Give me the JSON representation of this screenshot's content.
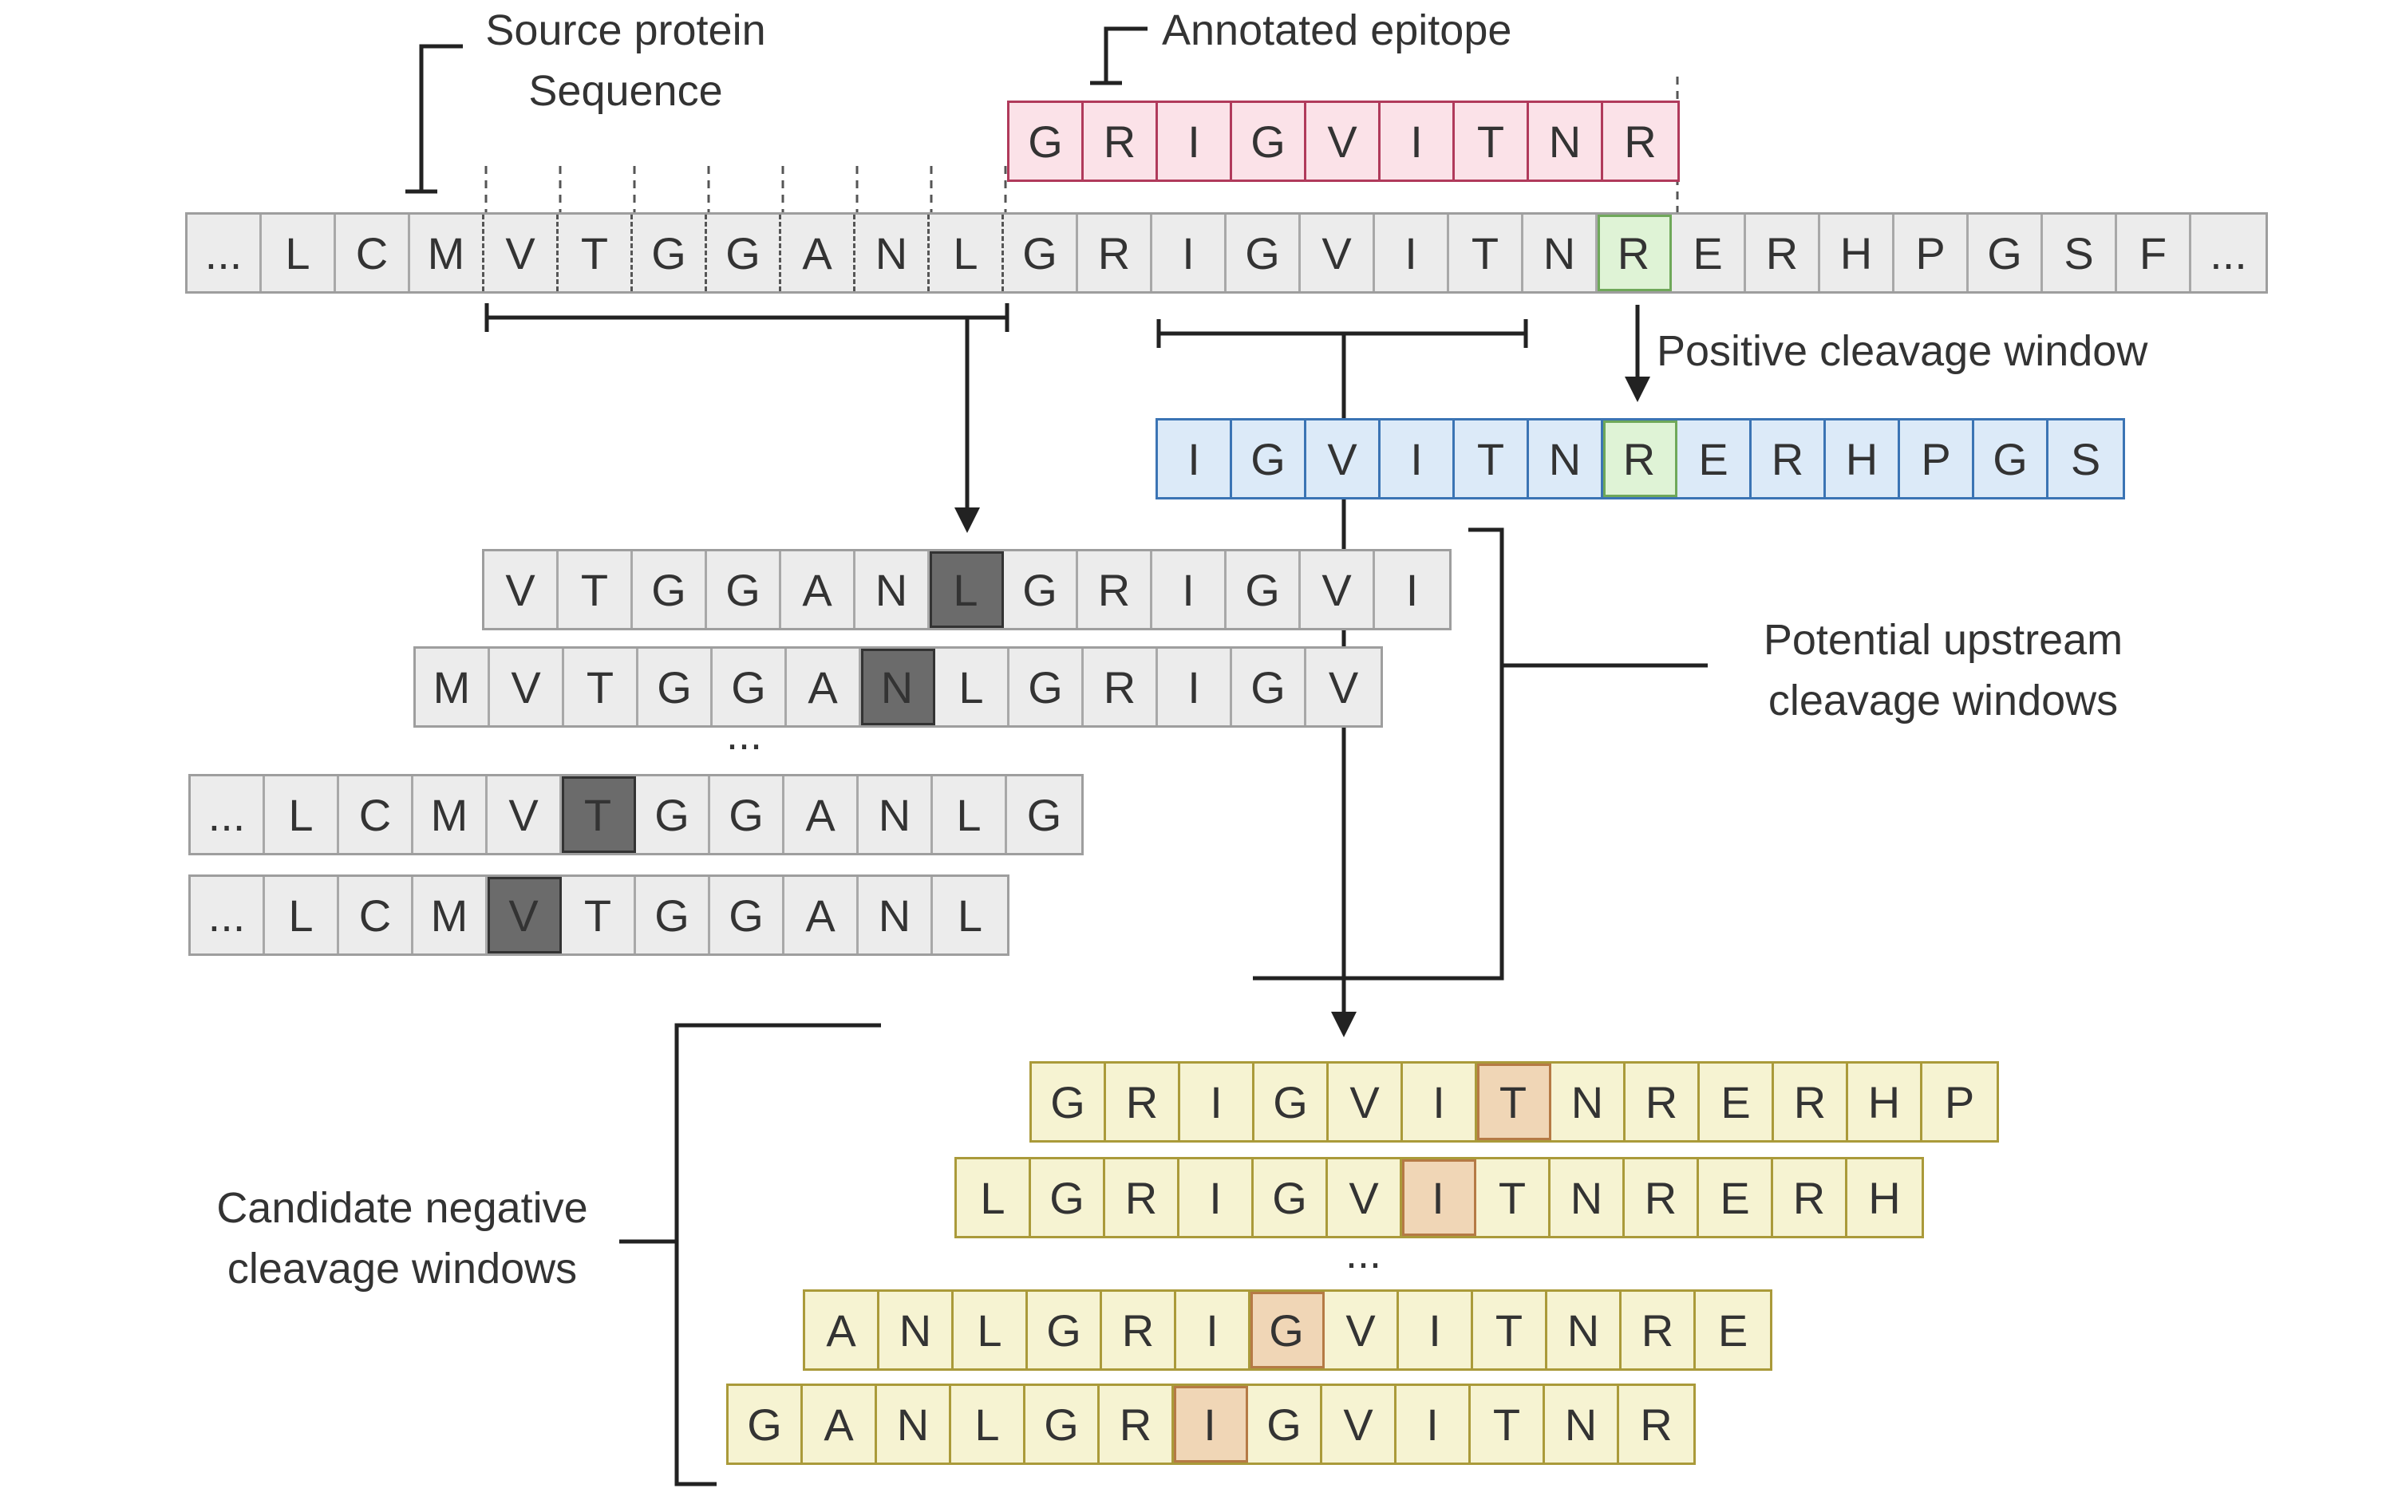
{
  "labels": {
    "source_protein": "Source protein",
    "sequence": "Sequence",
    "annotated_epitope": "Annotated epitope",
    "positive_window": "Positive cleavage window",
    "upstream_line1": "Potential upstream",
    "upstream_line2": "cleavage windows",
    "negative_line1": "Candidate negative",
    "negative_line2": "cleavage windows"
  },
  "ellipsis": "...",
  "colors": {
    "gray_fill": "#ececec",
    "pink_fill": "#fbe2e8",
    "blue_fill": "#dceaf8",
    "yellow_fill": "#f6f3d2",
    "green_highlight": "#dff3d6",
    "dark_highlight": "#6b6b6b",
    "orange_highlight": "#f0d6b6"
  },
  "source_sequence": [
    "...",
    "L",
    "C",
    "M",
    "V",
    "T",
    "G",
    "G",
    "A",
    "N",
    "L",
    "G",
    "R",
    "I",
    "G",
    "V",
    "I",
    "T",
    "N",
    "R",
    "E",
    "R",
    "H",
    "P",
    "G",
    "S",
    "F",
    "..."
  ],
  "epitope": [
    "G",
    "R",
    "I",
    "G",
    "V",
    "I",
    "T",
    "N",
    "R"
  ],
  "positive_window": [
    "I",
    "G",
    "V",
    "I",
    "T",
    "N",
    "R",
    "E",
    "R",
    "H",
    "P",
    "G",
    "S"
  ],
  "upstream_windows": [
    {
      "residues": [
        "V",
        "T",
        "G",
        "G",
        "A",
        "N",
        "L",
        "G",
        "R",
        "I",
        "G",
        "V",
        "I"
      ],
      "highlight": 6
    },
    {
      "residues": [
        "M",
        "V",
        "T",
        "G",
        "G",
        "A",
        "N",
        "L",
        "G",
        "R",
        "I",
        "G",
        "V"
      ],
      "highlight": 6
    },
    {
      "residues": [
        "...",
        "L",
        "C",
        "M",
        "V",
        "T",
        "G",
        "G",
        "A",
        "N",
        "L",
        "G"
      ],
      "highlight": 5
    },
    {
      "residues": [
        "...",
        "L",
        "C",
        "M",
        "V",
        "T",
        "G",
        "G",
        "A",
        "N",
        "L"
      ],
      "highlight": 4
    }
  ],
  "negative_windows": [
    {
      "residues": [
        "G",
        "R",
        "I",
        "G",
        "V",
        "I",
        "T",
        "N",
        "R",
        "E",
        "R",
        "H",
        "P"
      ],
      "highlight": 6
    },
    {
      "residues": [
        "L",
        "G",
        "R",
        "I",
        "G",
        "V",
        "I",
        "T",
        "N",
        "R",
        "E",
        "R",
        "H"
      ],
      "highlight": 6
    },
    {
      "residues": [
        "A",
        "N",
        "L",
        "G",
        "R",
        "I",
        "G",
        "V",
        "I",
        "T",
        "N",
        "R",
        "E"
      ],
      "highlight": 6
    },
    {
      "residues": [
        "G",
        "A",
        "N",
        "L",
        "G",
        "R",
        "I",
        "G",
        "V",
        "I",
        "T",
        "N",
        "R"
      ],
      "highlight": 6
    }
  ]
}
